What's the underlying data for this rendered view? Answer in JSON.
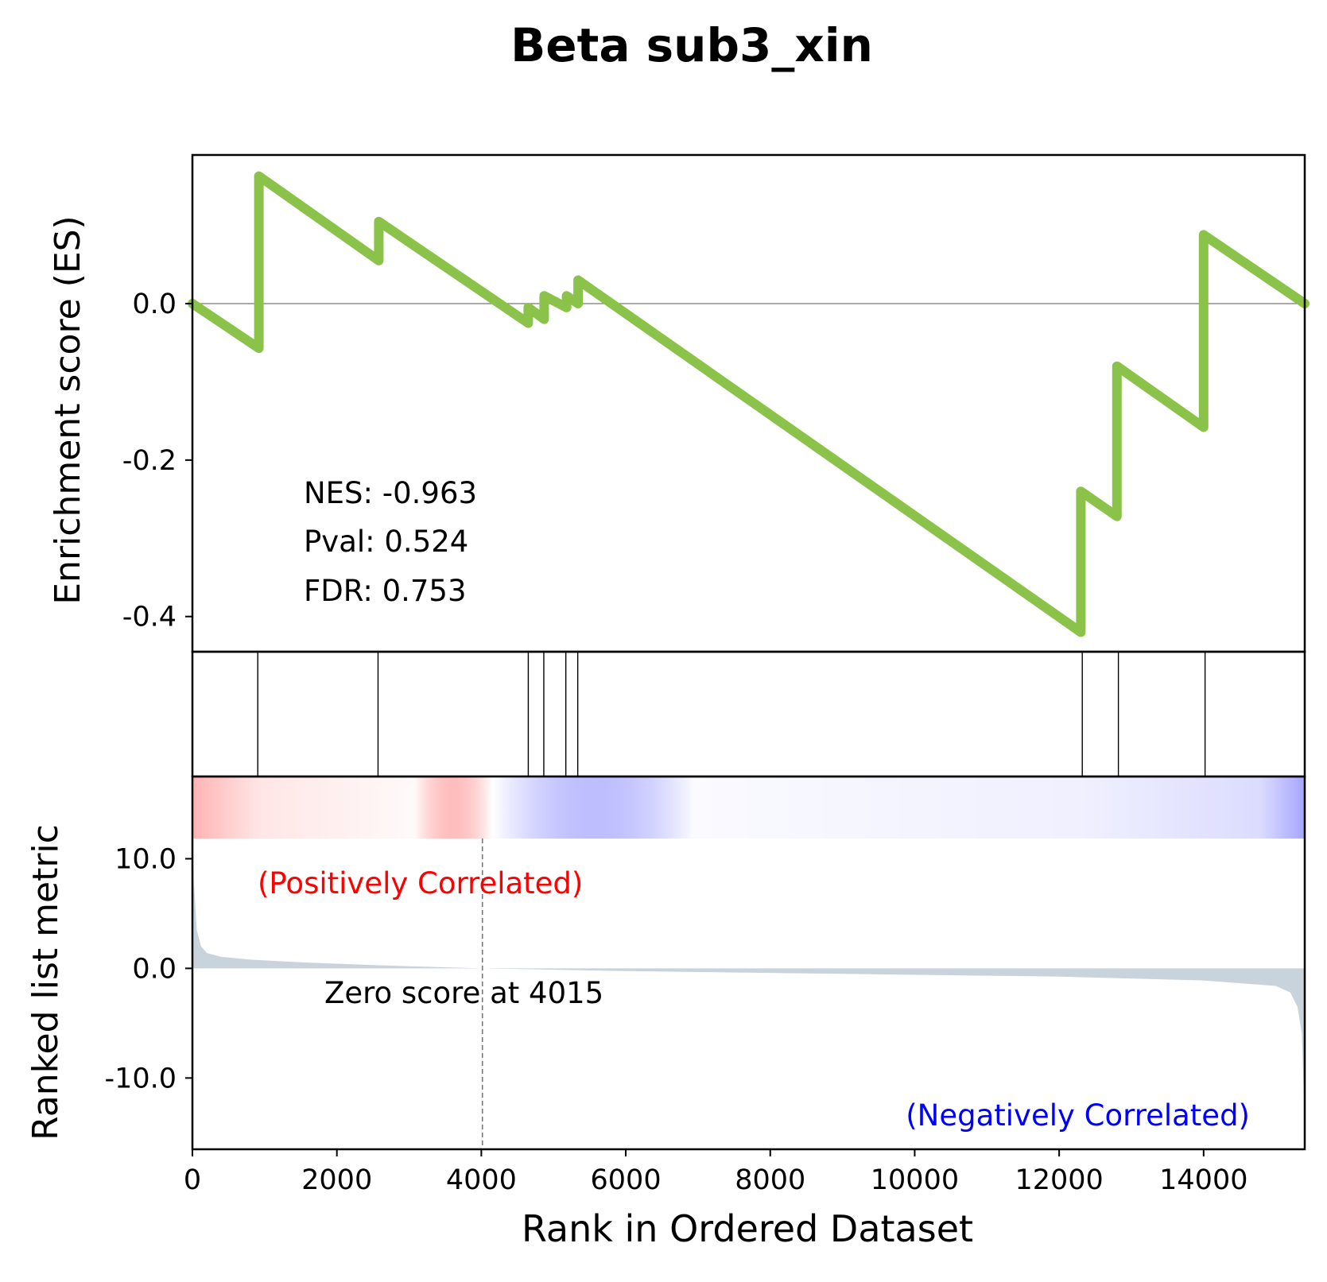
{
  "chart_data": {
    "type": "line",
    "title": "Beta sub3_xin",
    "xlabel": "Rank in Ordered Dataset",
    "xlim": [
      0,
      15400
    ],
    "xticks": [
      0,
      2000,
      4000,
      6000,
      8000,
      10000,
      12000,
      14000
    ],
    "xtick_labels": [
      "0",
      "2000",
      "4000",
      "6000",
      "8000",
      "10000",
      "12000",
      "14000"
    ],
    "es_panel": {
      "ylabel": "Enrichment score (ES)",
      "ylim": [
        -0.445,
        0.19
      ],
      "yticks": [
        0.0,
        -0.2,
        -0.4
      ],
      "ytick_labels": [
        "0.0",
        "-0.2",
        "-0.4"
      ],
      "line_color": "#8bc34a",
      "series": [
        {
          "x": [
            0,
            920,
            920,
            2580,
            2580,
            4650,
            4650,
            4870,
            4870,
            5180,
            5180,
            5340,
            5340,
            12300,
            12300,
            12800,
            12800,
            14000,
            14000,
            15400
          ],
          "y": [
            0.0,
            -0.057,
            0.163,
            0.055,
            0.105,
            -0.025,
            -0.005,
            -0.02,
            0.01,
            -0.005,
            0.01,
            0.0,
            0.03,
            -0.42,
            -0.24,
            -0.272,
            -0.08,
            -0.158,
            0.088,
            0.0
          ]
        }
      ],
      "stats": [
        "NES: -0.963",
        "Pval: 0.524",
        "FDR: 0.753"
      ]
    },
    "hits_panel": {
      "hit_ranks": [
        905,
        2570,
        4650,
        4865,
        5170,
        5335,
        12320,
        12820,
        14020
      ]
    },
    "metric_panel": {
      "ylabel": "Ranked list metric",
      "ylim": [
        -16.5,
        17.5
      ],
      "yticks": [
        10.0,
        0.0,
        -10.0
      ],
      "ytick_labels": [
        "10.0",
        "0.0",
        "-10.0"
      ],
      "fill_color": "#c9d3dc",
      "zero_cross_rank": 4015,
      "zero_label": "Zero score at 4015",
      "pos_label": "(Positively Correlated)",
      "neg_label": "(Negatively Correlated)",
      "pos_color": "#ff0000",
      "neg_color": "#0000ff",
      "profile": {
        "x": [
          0,
          20,
          60,
          120,
          200,
          400,
          800,
          1500,
          2500,
          4015,
          6000,
          9000,
          12000,
          14000,
          15000,
          15200,
          15300,
          15360,
          15390,
          15400
        ],
        "y": [
          15.5,
          8.0,
          3.5,
          2.0,
          1.4,
          1.05,
          0.8,
          0.55,
          0.3,
          0.0,
          -0.25,
          -0.5,
          -0.75,
          -1.1,
          -1.6,
          -2.2,
          -3.5,
          -6.0,
          -12.0,
          -16.5
        ]
      }
    },
    "colorbar": {
      "positive_color": "#ff0000",
      "negative_color": "#0000ff"
    }
  }
}
